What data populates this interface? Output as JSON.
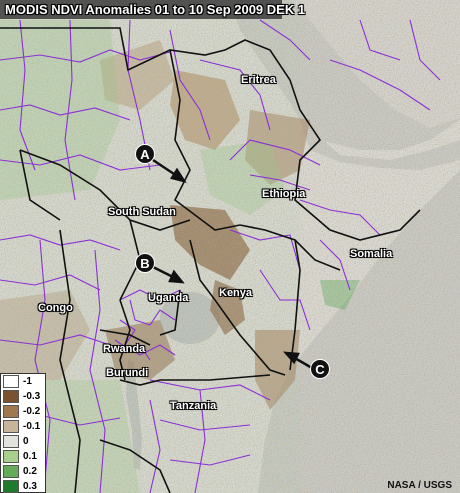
{
  "title": "MODIS NDVI Anomalies  01 to 10 Sep 2009 DEK 1",
  "credit": "NASA / USGS",
  "countries": {
    "eritrea": "Eritrea",
    "ethiopia": "Ethiopia",
    "south_sudan": "South Sudan",
    "somalia": "Somalia",
    "kenya": "Kenya",
    "uganda": "Uganda",
    "congo": "Congo",
    "rwanda": "Rwanda",
    "burundi": "Burundi",
    "tanzania": "Tanzania"
  },
  "markers": {
    "a": "A",
    "b": "B",
    "c": "C"
  },
  "legend": [
    {
      "label": "-1",
      "color": "#ffffff"
    },
    {
      "label": "-0.3",
      "color": "#7a5230"
    },
    {
      "label": "-0.2",
      "color": "#a07850"
    },
    {
      "label": "-0.1",
      "color": "#c8b49a"
    },
    {
      "label": "0",
      "color": "#e2e2dc"
    },
    {
      "label": "0.1",
      "color": "#a8cf8c"
    },
    {
      "label": "0.2",
      "color": "#64ab58"
    },
    {
      "label": "0.3",
      "color": "#1f7a2c"
    }
  ],
  "colors": {
    "sea": "#c6c8c6",
    "land": "#d9dad6",
    "admin_border": "#8b2fd6",
    "country_border": "#111111"
  }
}
